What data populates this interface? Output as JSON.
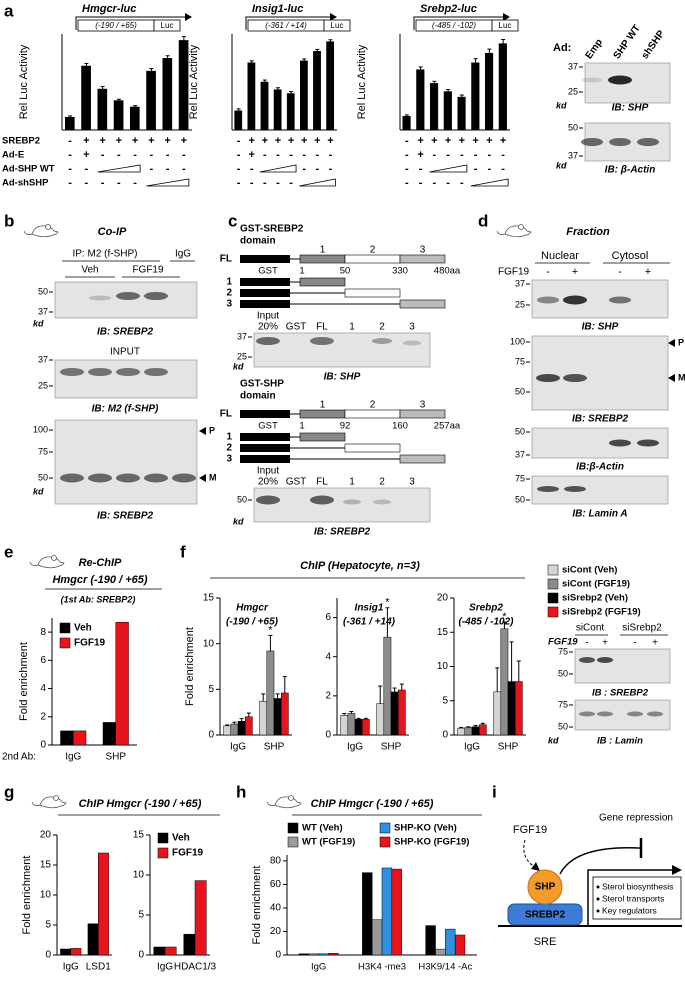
{
  "chart_data": [
    {
      "type": "bar",
      "ylabel": "Rel Luc Activity",
      "color": "#000000",
      "ylim": [
        0,
        7.5
      ],
      "values": [
        1,
        5,
        3.2,
        2.3,
        1.8,
        4.6,
        5.6,
        7
      ],
      "errors": [
        0.1,
        0.2,
        0.2,
        0.1,
        0.1,
        0.2,
        0.2,
        0.3
      ]
    },
    {
      "type": "bar",
      "ylabel": "Rel Luc Activity",
      "color": "#000000",
      "ylim": [
        0,
        5
      ],
      "values": [
        1,
        3.5,
        2.5,
        2.1,
        1.9,
        3.6,
        4.1,
        4.6
      ],
      "errors": [
        0.1,
        0.1,
        0.1,
        0.1,
        0.1,
        0.1,
        0.1,
        0.1
      ]
    },
    {
      "type": "bar",
      "ylabel": "Rel Luc Activity",
      "color": "#000000",
      "ylim": [
        0,
        7
      ],
      "values": [
        1,
        4.4,
        3.4,
        2.8,
        2.4,
        4.9,
        5.6,
        6.3
      ],
      "errors": [
        0.1,
        0.2,
        0.15,
        0.15,
        0.15,
        0.3,
        0.3,
        0.3
      ]
    },
    {
      "type": "bar",
      "title": "Re-ChIP",
      "subtitle": "Hmgcr (-190 / +65)",
      "note": "(1st Ab: SREBP2)",
      "xlabel": "2nd Ab:",
      "ylabel": "Fold enrichment",
      "categories": [
        "IgG",
        "SHP"
      ],
      "ylim": [
        0,
        9
      ],
      "yticks": [
        0,
        2,
        4,
        6,
        8
      ],
      "series": [
        {
          "name": "Veh",
          "color": "#000000",
          "values": [
            1,
            1.6
          ]
        },
        {
          "name": "FGF19",
          "color": "#e8141b",
          "values": [
            1,
            8.7
          ]
        }
      ]
    },
    {
      "type": "bar",
      "title": "Hmgcr",
      "subtitle": "(-190 / +65)",
      "annotation": "*",
      "ylabel": "Fold enrichment",
      "categories": [
        "IgG",
        "SHP"
      ],
      "ylim": [
        0,
        15
      ],
      "yticks": [
        0,
        5,
        10,
        15
      ],
      "series": [
        {
          "name": "siCont (Veh)",
          "color": "#d4d4d4",
          "values": [
            1,
            3.7
          ],
          "errors": [
            0.1,
            0.8
          ]
        },
        {
          "name": "siCont (FGF19)",
          "color": "#8c8c8c",
          "values": [
            1.2,
            9.2
          ],
          "errors": [
            0.2,
            1.7
          ]
        },
        {
          "name": "siSrebp2 (Veh)",
          "color": "#000000",
          "values": [
            1.5,
            4
          ],
          "errors": [
            0.3,
            0.5
          ]
        },
        {
          "name": "siSrebp2 (FGF19)",
          "color": "#e8141b",
          "values": [
            2,
            4.6
          ],
          "errors": [
            0.4,
            1.8
          ]
        }
      ]
    },
    {
      "type": "bar",
      "title": "Insig1",
      "subtitle": "(-361 / +14)",
      "annotation": "*",
      "categories": [
        "IgG",
        "SHP"
      ],
      "ylim": [
        0,
        7
      ],
      "yticks": [
        0,
        2,
        4,
        6
      ],
      "series": [
        {
          "color": "#d4d4d4",
          "values": [
            1,
            1.6
          ],
          "errors": [
            0.1,
            0.9
          ]
        },
        {
          "color": "#8c8c8c",
          "values": [
            1.1,
            5
          ],
          "errors": [
            0.1,
            1.5
          ]
        },
        {
          "color": "#000000",
          "values": [
            0.8,
            2.2
          ],
          "errors": [
            0.05,
            0.2
          ]
        },
        {
          "color": "#e8141b",
          "values": [
            0.8,
            2.3
          ],
          "errors": [
            0.05,
            0.3
          ]
        }
      ]
    },
    {
      "type": "bar",
      "title": "Srebp2",
      "subtitle": "(-485 / -102)",
      "annotation": "*",
      "categories": [
        "IgG",
        "SHP"
      ],
      "ylim": [
        0,
        20
      ],
      "yticks": [
        0,
        5,
        10,
        15,
        20
      ],
      "series": [
        {
          "color": "#d4d4d4",
          "values": [
            1,
            6.3
          ],
          "errors": [
            0.1,
            3.5
          ]
        },
        {
          "color": "#8c8c8c",
          "values": [
            1.1,
            15.5
          ],
          "errors": [
            0.1,
            1
          ]
        },
        {
          "color": "#000000",
          "values": [
            1.2,
            7.8
          ],
          "errors": [
            0.2,
            5.8
          ]
        },
        {
          "color": "#e8141b",
          "values": [
            1.5,
            7.8
          ],
          "errors": [
            0.2,
            3
          ]
        }
      ]
    },
    {
      "type": "bar",
      "ylabel": "Fold enrichment",
      "categories": [
        "IgG",
        "LSD1"
      ],
      "ylim": [
        0,
        20
      ],
      "yticks": [
        0,
        5,
        10,
        15,
        20
      ],
      "series": [
        {
          "color": "#000000",
          "values": [
            1,
            5.2
          ]
        },
        {
          "color": "#e8141b",
          "values": [
            1.1,
            17
          ]
        }
      ]
    },
    {
      "type": "bar",
      "categories": [
        "IgG",
        "HDAC1/3"
      ],
      "ylim": [
        0,
        15
      ],
      "yticks": [
        0,
        5,
        10,
        15
      ],
      "series": [
        {
          "name": "Veh",
          "color": "#000000",
          "values": [
            1,
            2.6
          ]
        },
        {
          "name": "FGF19",
          "color": "#e8141b",
          "values": [
            1,
            9.3
          ]
        }
      ]
    },
    {
      "type": "bar",
      "ylabel": "Fold enrichment",
      "categories": [
        "IgG",
        "H3K4 -me3",
        "H3K9/14 -Ac"
      ],
      "ylim": [
        0,
        85
      ],
      "yticks": [
        0,
        20,
        40,
        60,
        80
      ],
      "series": [
        {
          "name": "WT (Veh)",
          "color": "#000000",
          "values": [
            1,
            70,
            25
          ]
        },
        {
          "name": "WT (FGF19)",
          "color": "#9a9a9a",
          "values": [
            1,
            30,
            5
          ]
        },
        {
          "name": "SHP-KO (Veh)",
          "color": "#2f8fe0",
          "values": [
            1,
            74,
            22
          ]
        },
        {
          "name": "SHP-KO (FGF19)",
          "color": "#e8141b",
          "values": [
            1.5,
            73,
            17
          ]
        }
      ]
    }
  ],
  "panels": {
    "labels": [
      "a",
      "b",
      "c",
      "d",
      "e",
      "f",
      "g",
      "h",
      "i"
    ],
    "a": {
      "constructs": [
        {
          "gene": "Hmgcr-luc",
          "region": "(-190 / +65)",
          "reporter": "Luc"
        },
        {
          "gene": "Insig1-luc",
          "region": "(-361 / +14)",
          "reporter": "Luc"
        },
        {
          "gene": "Srebp2-luc",
          "region": "(-485 / -102)",
          "reporter": "Luc"
        }
      ],
      "conditions": [
        {
          "name": "SREBP2",
          "signs": [
            "-",
            "+",
            "+",
            "+",
            "+",
            "+",
            "+",
            "+"
          ]
        },
        {
          "name": "Ad-E",
          "signs": [
            "-",
            "+",
            "-",
            "-",
            "-",
            "-",
            "-",
            "-"
          ]
        },
        {
          "name": "Ad-SHP WT",
          "signs": [
            "-",
            "-",
            null,
            null,
            null,
            "-",
            "-",
            "-"
          ]
        },
        {
          "name": "Ad-shSHP",
          "signs": [
            "-",
            "-",
            "-",
            "-",
            "-",
            null,
            null,
            null
          ]
        }
      ],
      "blot": {
        "header": "Ad:",
        "lanes": [
          "Emp",
          "SHP WT",
          "shSHP"
        ],
        "blots": [
          {
            "markers": [
              37,
              25
            ],
            "unit": "kd",
            "label": "IB: SHP"
          },
          {
            "markers": [
              50,
              37
            ],
            "unit": "kd",
            "label": "IB: β-Actin"
          }
        ]
      }
    },
    "b": {
      "title": "Co-IP",
      "ip": "IP: M2 (f-SHP)",
      "control": "IgG",
      "groups": [
        "Veh",
        "FGF19"
      ],
      "blots": [
        {
          "markers": [
            50,
            37
          ],
          "unit": "kd",
          "label": "IB: SREBP2"
        },
        {
          "header": "INPUT",
          "markers": [
            37,
            25
          ],
          "label": "IB: M2 (f-SHP)"
        },
        {
          "markers": [
            100,
            75,
            50
          ],
          "unit": "kd",
          "arrows": [
            "P",
            "M"
          ],
          "label": "IB: SREBP2"
        }
      ]
    },
    "c": {
      "diagrams": [
        {
          "title": "GST-SREBP2",
          "subtitle": "domain",
          "full": "FL",
          "tag": "GST",
          "domains": [
            1,
            2,
            3
          ],
          "bounds": [
            1,
            50,
            330,
            "480aa"
          ],
          "rows": [
            1,
            2,
            3
          ],
          "input": "Input",
          "lanes": [
            "20%",
            "GST",
            "FL",
            1,
            2,
            3
          ],
          "markers": [
            37,
            25
          ],
          "unit": "kd",
          "label": "IB: SHP"
        },
        {
          "title": "GST-SHP",
          "subtitle": "domain",
          "full": "FL",
          "tag": "GST",
          "domains": [
            1,
            2,
            3
          ],
          "bounds": [
            1,
            92,
            160,
            "257aa"
          ],
          "rows": [
            1,
            2,
            3
          ],
          "input": "Input",
          "lanes": [
            "20%",
            "GST",
            "FL",
            1,
            2,
            3
          ],
          "markers": [
            50
          ],
          "unit": "kd",
          "label": "IB: SREBP2"
        }
      ]
    },
    "d": {
      "title": "Fraction",
      "fractions": [
        "Nuclear",
        "Cytosol"
      ],
      "treatment": "FGF19",
      "signs": [
        "-",
        "+",
        "-",
        "+"
      ],
      "blots": [
        {
          "markers": [
            37,
            25
          ],
          "label": "IB: SHP"
        },
        {
          "markers": [
            100,
            75,
            50
          ],
          "arrows": [
            "P",
            "M"
          ],
          "label": "IB: SREBP2"
        },
        {
          "markers": [
            50,
            37
          ],
          "label": "IB:β-Actin"
        },
        {
          "markers": [
            75,
            50
          ],
          "label": "IB: Lamin A"
        }
      ]
    },
    "f": {
      "title": "ChIP (Hepatocyte, n=3)",
      "blot": {
        "groups": [
          "siCont",
          "siSrebp2"
        ],
        "treatment": "FGF19",
        "signs": [
          "-",
          "+",
          "-",
          "+"
        ],
        "blots": [
          {
            "markers": [
              75,
              50
            ],
            "label": "IB : SREBP2"
          },
          {
            "markers": [
              75,
              50
            ],
            "unit": "kd",
            "label": "IB : Lamin"
          }
        ]
      }
    },
    "g": {
      "title": "ChIP Hmgcr (-190 / +65)"
    },
    "h": {
      "title": "ChIP Hmgcr (-190 / +65)"
    },
    "i": {
      "signal": "FGF19",
      "effect": "Gene repression",
      "corepressor": "SHP",
      "factor": "SREBP2",
      "element": "SRE",
      "targets": [
        "Sterol biosynthesis",
        "Sterol transports",
        "Key regulators"
      ]
    }
  }
}
